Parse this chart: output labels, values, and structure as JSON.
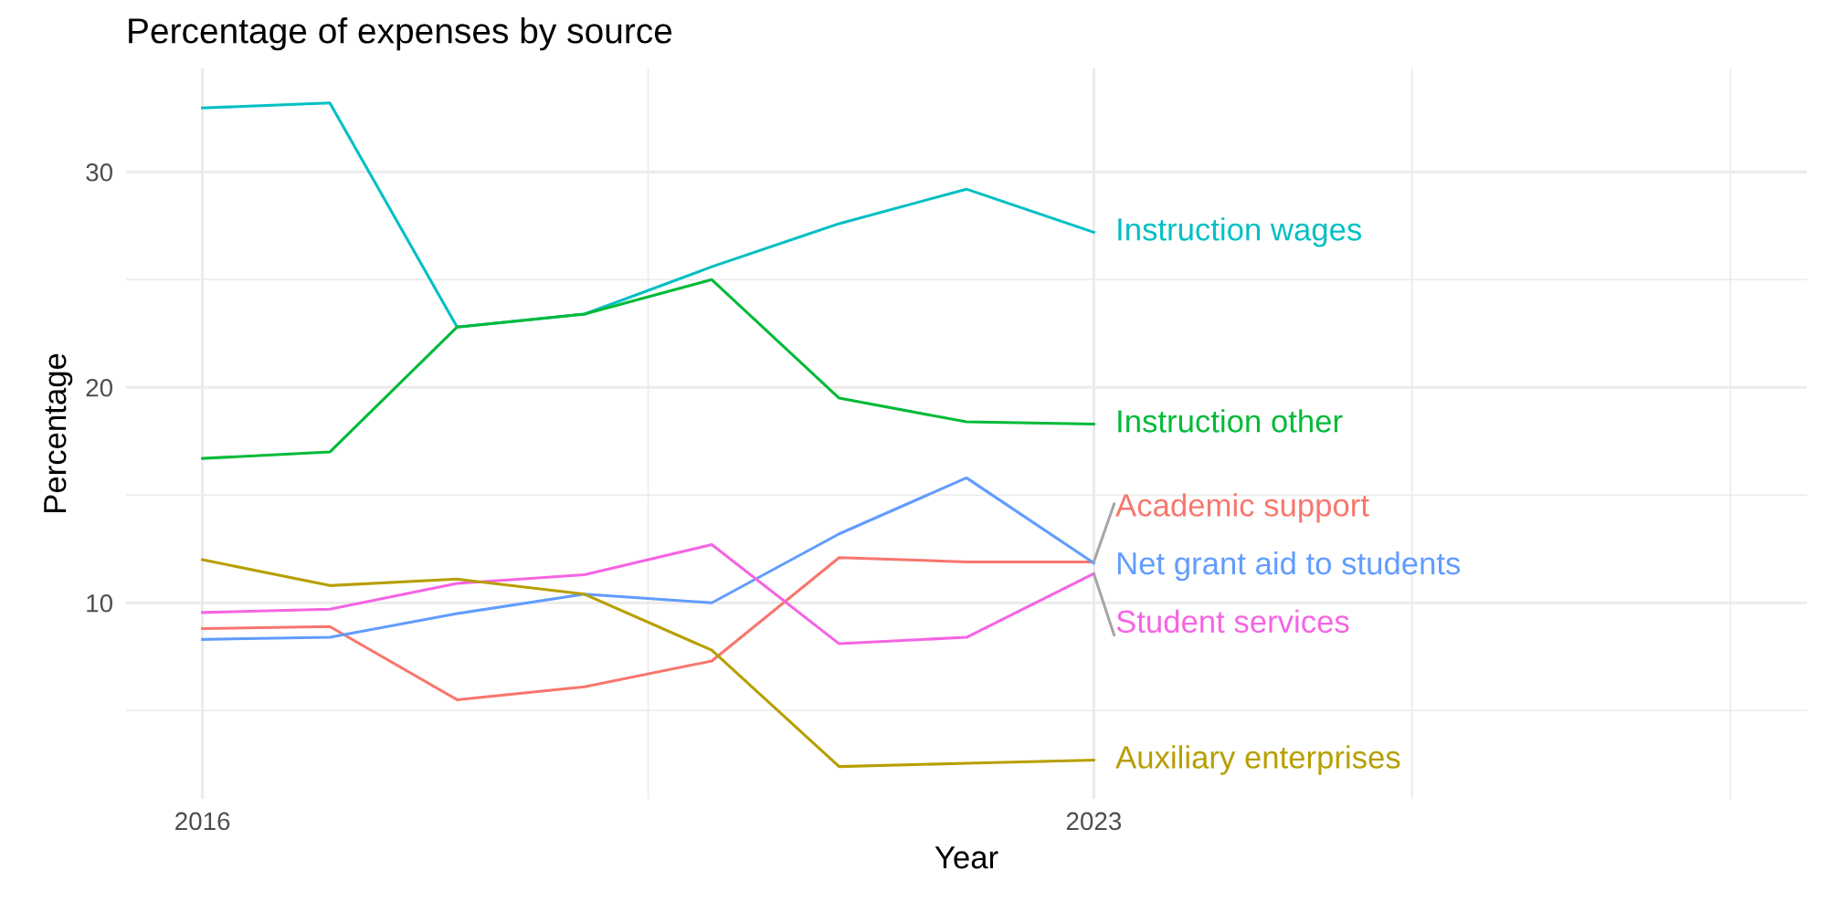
{
  "chart_data": {
    "type": "line",
    "title": "Percentage of expenses by source",
    "xlabel": "Year",
    "ylabel": "Percentage",
    "x": [
      2016,
      2017,
      2018,
      2019,
      2020,
      2021,
      2022,
      2023
    ],
    "series": [
      {
        "name": "Instruction wages",
        "color": "#00bfc4",
        "values": [
          32.97,
          33.2,
          22.8,
          23.4,
          25.6,
          27.6,
          29.2,
          27.2
        ]
      },
      {
        "name": "Instruction other",
        "color": "#00ba38",
        "values": [
          16.7,
          17.0,
          22.8,
          23.4,
          25.0,
          19.5,
          18.4,
          18.3
        ]
      },
      {
        "name": "Academic support",
        "color": "#f8766d",
        "values": [
          8.8,
          8.9,
          5.5,
          6.1,
          7.3,
          12.1,
          11.9,
          11.9
        ]
      },
      {
        "name": "Net grant aid to students",
        "color": "#619cff",
        "values": [
          8.3,
          8.4,
          9.5,
          10.4,
          10.0,
          13.2,
          15.8,
          11.85
        ]
      },
      {
        "name": "Student services",
        "color": "#f564e3",
        "values": [
          9.55,
          9.7,
          10.9,
          11.3,
          12.7,
          8.1,
          8.4,
          11.35
        ]
      },
      {
        "name": "Auxiliary enterprises",
        "color": "#b79f00",
        "values": [
          12.0,
          10.8,
          11.1,
          10.4,
          7.8,
          2.4,
          2.55,
          2.7
        ]
      }
    ],
    "xlim": [
      2015.4,
      2028.6
    ],
    "ylim": [
      0.9,
      34.8
    ],
    "xticks": [
      2016,
      {
        "value": 2019.5,
        "label": null
      },
      2023,
      {
        "value": 2025.5,
        "label": null
      },
      {
        "value": 2028,
        "label": null
      }
    ],
    "yticks": [
      {
        "value": 5,
        "label": null
      },
      10,
      {
        "value": 15,
        "label": null
      },
      20,
      {
        "value": 25,
        "label": null
      },
      30
    ],
    "grid": true,
    "legend": false,
    "marker": "none",
    "line_style": "solid"
  }
}
